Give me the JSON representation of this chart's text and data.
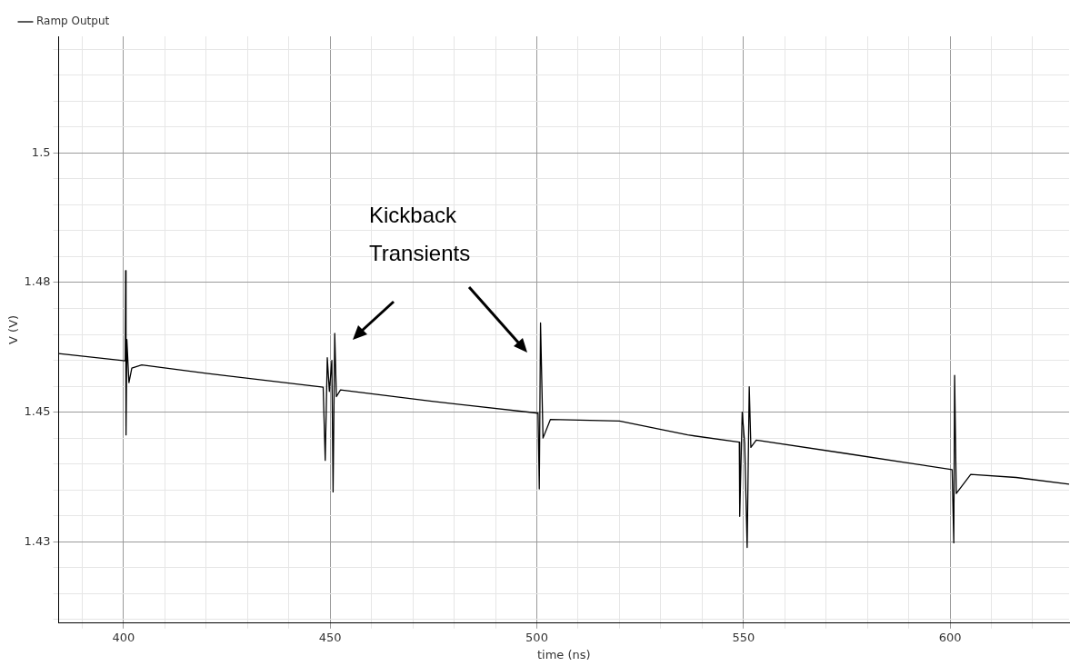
{
  "chart_data": {
    "type": "line",
    "xlabel": "time (ns)",
    "ylabel": "V (V)",
    "legend": "top left",
    "grid": true,
    "marker": "none",
    "line_style": "solid",
    "annotations": [
      "Kickback Transients"
    ],
    "xlim": [
      384.3,
      628.8
    ],
    "ylim": [
      1.4093,
      1.5225
    ],
    "xticks": [
      {
        "value": 390,
        "label": null
      },
      400,
      {
        "value": 410,
        "label": null
      },
      {
        "value": 420,
        "label": null
      },
      {
        "value": 430,
        "label": null
      },
      {
        "value": 440,
        "label": null
      },
      450,
      {
        "value": 460,
        "label": null
      },
      {
        "value": 470,
        "label": null
      },
      {
        "value": 480,
        "label": null
      },
      {
        "value": 490,
        "label": null
      },
      500,
      {
        "value": 510,
        "label": null
      },
      {
        "value": 520,
        "label": null
      },
      {
        "value": 530,
        "label": null
      },
      {
        "value": 540,
        "label": null
      },
      550,
      {
        "value": 560,
        "label": null
      },
      {
        "value": 570,
        "label": null
      },
      {
        "value": 580,
        "label": null
      },
      {
        "value": 590,
        "label": null
      },
      600,
      {
        "value": 610,
        "label": null
      },
      {
        "value": 620,
        "label": null
      }
    ],
    "yticks": [
      {
        "value": 1.41,
        "label": null
      },
      {
        "value": 1.415,
        "label": null
      },
      {
        "value": 1.42,
        "label": null
      },
      {
        "value": 1.425,
        "label": "1.43"
      },
      {
        "value": 1.43,
        "label": null
      },
      {
        "value": 1.435,
        "label": null
      },
      {
        "value": 1.44,
        "label": null
      },
      {
        "value": 1.445,
        "label": null
      },
      1.45,
      {
        "value": 1.455,
        "label": null
      },
      {
        "value": 1.46,
        "label": null
      },
      {
        "value": 1.465,
        "label": null
      },
      {
        "value": 1.47,
        "label": null
      },
      {
        "value": 1.475,
        "label": "1.48"
      },
      {
        "value": 1.48,
        "label": null
      },
      {
        "value": 1.485,
        "label": null
      },
      {
        "value": 1.49,
        "label": null
      },
      {
        "value": 1.495,
        "label": null
      },
      {
        "value": 1.5,
        "label": "1.5"
      },
      {
        "value": 1.505,
        "label": null
      },
      {
        "value": 1.51,
        "label": null
      },
      {
        "value": 1.515,
        "label": null
      },
      {
        "value": 1.52,
        "label": null
      }
    ],
    "series": [
      {
        "name": "Ramp Output",
        "color": "#000000",
        "x": [
          384.3,
          400.4,
          400.5,
          400.6,
          400.8,
          401.3,
          402,
          404.4,
          420,
          448.3,
          448.8,
          449.3,
          449.8,
          450.4,
          450.7,
          451.1,
          451.5,
          452.5,
          474.6,
          500.3,
          500.6,
          500.9,
          501.5,
          503.3,
          520,
          536.5,
          549,
          549.1,
          549.7,
          550.3,
          550.9,
          551.4,
          551.8,
          553.1,
          575,
          600.5,
          600.9,
          601.1,
          601.5,
          605,
          616,
          628.8
        ],
        "values": [
          1.4613,
          1.4599,
          1.4773,
          1.4456,
          1.464,
          1.4557,
          1.4585,
          1.4591,
          1.4575,
          1.4548,
          1.4407,
          1.4605,
          1.454,
          1.46,
          1.4346,
          1.4652,
          1.453,
          1.4543,
          1.4521,
          1.4498,
          1.4352,
          1.4672,
          1.445,
          1.4486,
          1.4483,
          1.4456,
          1.4442,
          1.4299,
          1.45,
          1.444,
          1.4239,
          1.4549,
          1.4432,
          1.4446,
          1.442,
          1.4389,
          1.4248,
          1.4571,
          1.4343,
          1.438,
          1.4374,
          1.4361
        ]
      }
    ]
  }
}
